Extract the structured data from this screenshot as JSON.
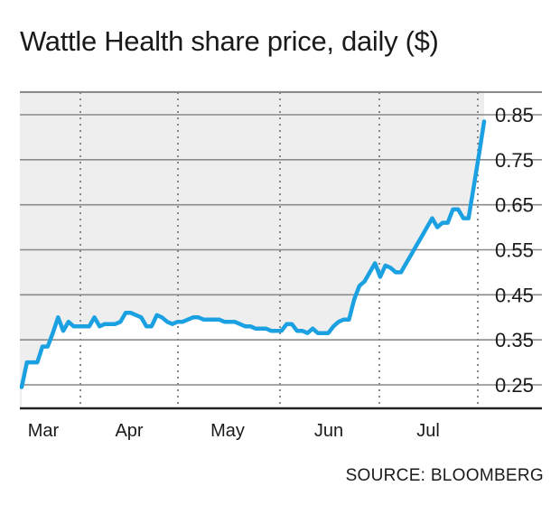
{
  "chart_data": {
    "type": "line",
    "title": "Wattle Health share price, daily ($)",
    "source": "SOURCE: BLOOMBERG",
    "xlabel": "",
    "ylabel": "",
    "x_ticks": [
      "Mar",
      "Apr",
      "May",
      "Jun",
      "Jul"
    ],
    "y_ticks": [
      "0.85",
      "0.75",
      "0.65",
      "0.55",
      "0.45",
      "0.35",
      "0.25"
    ],
    "ylim": [
      0.2,
      0.9
    ],
    "grid": "horizontal solid lines, vertical dotted lines at month boundaries",
    "area_fill": true,
    "colors": {
      "line": "#1ba1e2",
      "area": "#eeeeee",
      "grid": "#8a8a8a",
      "axis": "#222222"
    },
    "series": [
      {
        "values": [
          0.245,
          0.3,
          0.3,
          0.3,
          0.335,
          0.335,
          0.365,
          0.4,
          0.37,
          0.39,
          0.38,
          0.38,
          0.38,
          0.38,
          0.4,
          0.38,
          0.385,
          0.385,
          0.385,
          0.39,
          0.41,
          0.41,
          0.405,
          0.4,
          0.38,
          0.38,
          0.405,
          0.4,
          0.39,
          0.385,
          0.39,
          0.39,
          0.395,
          0.4,
          0.4,
          0.395,
          0.395,
          0.395,
          0.395,
          0.39,
          0.39,
          0.39,
          0.385,
          0.38,
          0.38,
          0.375,
          0.375,
          0.375,
          0.37,
          0.37,
          0.37,
          0.385,
          0.385,
          0.37,
          0.37,
          0.365,
          0.375,
          0.365,
          0.365,
          0.365,
          0.38,
          0.39,
          0.395,
          0.395,
          0.44,
          0.47,
          0.48,
          0.5,
          0.52,
          0.49,
          0.515,
          0.51,
          0.5,
          0.5,
          0.52,
          0.54,
          0.56,
          0.58,
          0.6,
          0.62,
          0.6,
          0.61,
          0.61,
          0.64,
          0.64,
          0.62,
          0.62,
          0.69,
          0.76,
          0.835
        ]
      }
    ]
  }
}
